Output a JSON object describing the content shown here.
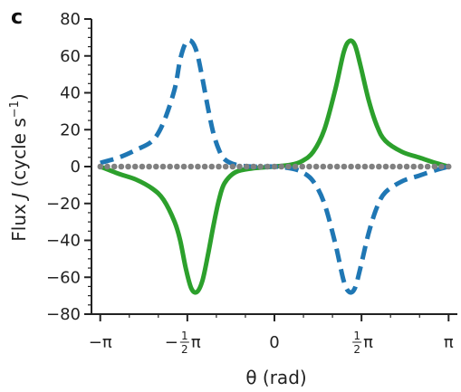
{
  "chart_data": {
    "type": "line",
    "panel_label": "c",
    "xlabel": "θ (rad)",
    "ylabel_prefix": "Flux ",
    "ylabel_var": "J",
    "ylabel_unit_open": " (cycle s",
    "ylabel_unit_exp": "−1",
    "ylabel_unit_close": ")",
    "xlim": [
      -3.3,
      3.3
    ],
    "ylim": [
      -80,
      80
    ],
    "y_ticks": [
      -80,
      -60,
      -40,
      -20,
      0,
      20,
      40,
      60,
      80
    ],
    "y_tick_labels": [
      "−80",
      "−60",
      "−40",
      "−20",
      "0",
      "20",
      "40",
      "60",
      "80"
    ],
    "x_ticks": [
      -3.1416,
      -1.5708,
      0,
      1.5708,
      3.1416
    ],
    "x_tick_labels": [
      {
        "pre": "−π",
        "frac": false
      },
      {
        "pre": "−",
        "frac": true,
        "num": "1",
        "den": "2",
        "post": "π"
      },
      {
        "pre": "0",
        "frac": false
      },
      {
        "pre": "",
        "frac": true,
        "num": "1",
        "den": "2",
        "post": "π"
      },
      {
        "pre": "π",
        "frac": false
      }
    ],
    "grid": false,
    "colors": {
      "green": "#2ca02c",
      "blue": "#1f77b4",
      "gray": "#808080"
    },
    "series": [
      {
        "style": "solid",
        "color": "#2ca02c",
        "x": [
          -3.14,
          -2.8,
          -2.5,
          -2.2,
          -2.0,
          -1.8,
          -1.7,
          -1.6,
          -1.5,
          -1.4,
          -1.3,
          -1.2,
          -1.1,
          -1.0,
          -0.9,
          -0.7,
          -0.4,
          0.0,
          0.3,
          0.5,
          0.7,
          0.9,
          1.1,
          1.25,
          1.35,
          1.45,
          1.55,
          1.7,
          1.85,
          2.0,
          2.3,
          2.6,
          2.9,
          3.14
        ],
        "y": [
          0,
          -4,
          -7,
          -12,
          -18,
          -30,
          -40,
          -55,
          -66,
          -68,
          -62,
          -48,
          -32,
          -18,
          -9,
          -3,
          -1,
          0,
          1,
          3,
          8,
          20,
          42,
          62,
          68,
          66,
          55,
          36,
          22,
          14,
          8,
          5,
          2,
          0
        ]
      },
      {
        "style": "dashed",
        "color": "#1f77b4",
        "x": [
          -3.14,
          -2.8,
          -2.5,
          -2.2,
          -2.0,
          -1.8,
          -1.7,
          -1.6,
          -1.5,
          -1.4,
          -1.3,
          -1.2,
          -1.1,
          -1.0,
          -0.9,
          -0.7,
          -0.4,
          0.0,
          0.3,
          0.5,
          0.7,
          0.9,
          1.1,
          1.25,
          1.35,
          1.45,
          1.55,
          1.7,
          1.85,
          2.0,
          2.3,
          2.6,
          2.9,
          3.14
        ],
        "y": [
          2,
          5,
          9,
          14,
          24,
          42,
          58,
          67,
          68,
          62,
          48,
          32,
          18,
          9,
          4,
          1,
          0,
          0,
          -1,
          -3,
          -8,
          -20,
          -42,
          -62,
          -68,
          -66,
          -55,
          -36,
          -22,
          -14,
          -8,
          -5,
          -2,
          0
        ]
      },
      {
        "style": "dots",
        "color": "#808080",
        "x_range": [
          -3.14,
          3.14
        ],
        "n_points": 51,
        "y_value": 0
      }
    ]
  }
}
